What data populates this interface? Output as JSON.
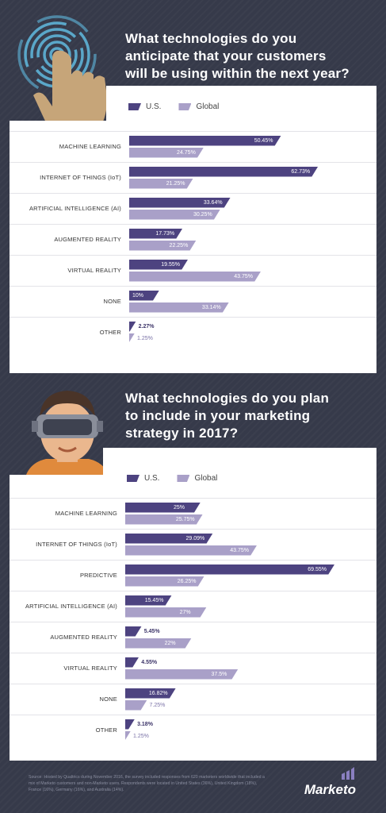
{
  "section1": {
    "title_lines": [
      "What technologies do you",
      "anticipate that your customers",
      "will be using within the next year?"
    ]
  },
  "section2": {
    "title_lines": [
      "What technologies do you plan",
      "to include in your marketing",
      "strategy in 2017?"
    ]
  },
  "legend": {
    "us": "U.S.",
    "global": "Global"
  },
  "colors": {
    "us": "#4d4380",
    "global": "#a9a0c8",
    "background": "#363a4a",
    "hand": "#c6a579",
    "ring": "#5aa7c9"
  },
  "chart_data": [
    {
      "type": "bar",
      "orientation": "horizontal",
      "title": "What technologies do you anticipate that your customers will be using within the next year?",
      "categories": [
        "MACHINE LEARNING",
        "INTERNET OF THINGS (IoT)",
        "ARTIFICIAL INTELLIGENCE (AI)",
        "AUGMENTED REALITY",
        "VIRTUAL REALITY",
        "NONE",
        "OTHER"
      ],
      "series": [
        {
          "name": "U.S.",
          "values": [
            50.45,
            62.73,
            33.64,
            17.73,
            19.55,
            10,
            2.27
          ],
          "labels": [
            "50.45%",
            "62.73%",
            "33.64%",
            "17.73%",
            "19.55%",
            "10%",
            "2.27%"
          ]
        },
        {
          "name": "Global",
          "values": [
            24.75,
            21.25,
            30.25,
            22.25,
            43.75,
            33.14,
            1.25
          ],
          "labels": [
            "24.75%",
            "21.25%",
            "30.25%",
            "22.25%",
            "43.75%",
            "33.14%",
            "1.25%"
          ]
        }
      ],
      "legend": "top-left",
      "grid": true
    },
    {
      "type": "bar",
      "orientation": "horizontal",
      "title": "What technologies do you plan to include in your marketing strategy in 2017?",
      "categories": [
        "MACHINE LEARNING",
        "INTERNET OF THINGS (IoT)",
        "PREDICTIVE",
        "ARTIFICIAL INTELLIGENCE (AI)",
        "AUGMENTED REALITY",
        "VIRTUAL REALITY",
        "NONE",
        "OTHER"
      ],
      "series": [
        {
          "name": "U.S.",
          "values": [
            25,
            29.09,
            69.55,
            15.45,
            5.45,
            4.55,
            16.82,
            3.18
          ],
          "labels": [
            "25%",
            "29.09%",
            "69.55%",
            "15.45%",
            "5.45%",
            "4.55%",
            "16.82%",
            "3.18%"
          ]
        },
        {
          "name": "Global",
          "values": [
            25.75,
            43.75,
            26.25,
            27,
            22,
            37.5,
            7.25,
            1.25
          ],
          "labels": [
            "25.75%",
            "43.75%",
            "26.25%",
            "27%",
            "22%",
            "37.5%",
            "7.25%",
            "1.25%"
          ]
        }
      ],
      "legend": "top-left",
      "grid": true
    }
  ],
  "footer": {
    "source": "Source: Hosted by Qualtrics during November 2016, the survey included responses from 620 marketers worldwide that included a mix of Marketo customers and non-Marketo users. Respondents were located in United States (36%), United Kingdom (18%), France (16%), Germany (16%), and Australia (14%).",
    "brand": "Marketo"
  }
}
